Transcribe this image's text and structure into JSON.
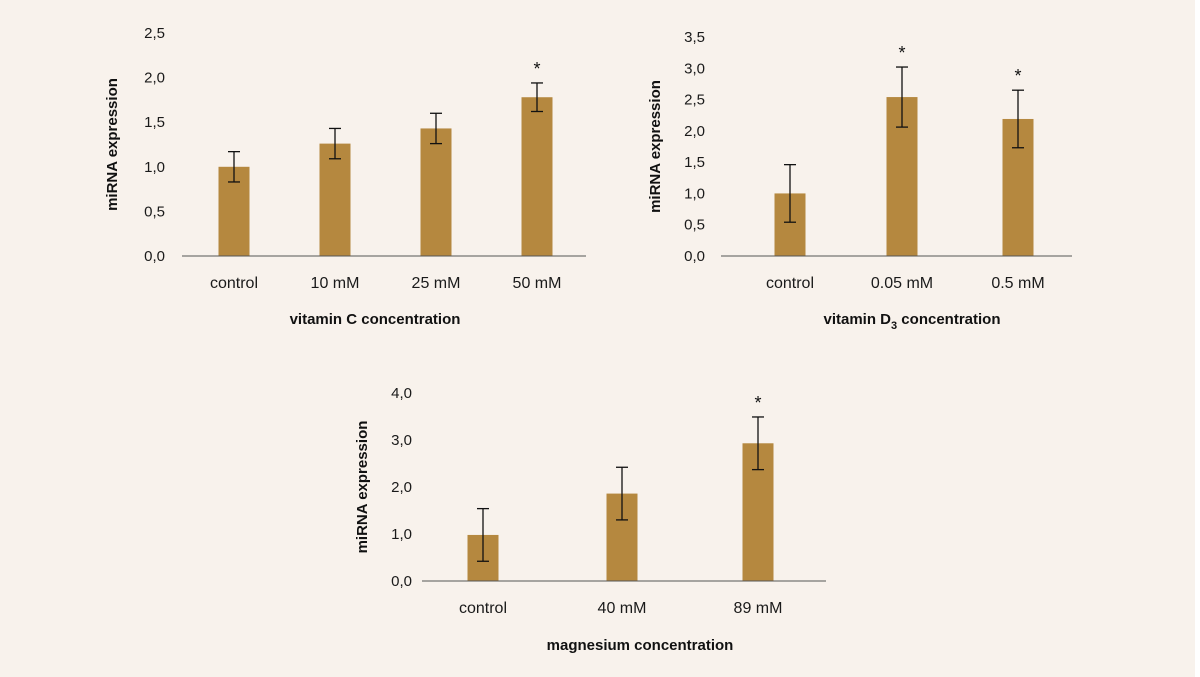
{
  "colors": {
    "background": "#f8f2ec",
    "bar": "#b5883f",
    "axis": "#555555",
    "text": "#1a1a1a"
  },
  "chart_data": [
    {
      "type": "bar",
      "categories": [
        "control",
        "10 mM",
        "25 mM",
        "50 mM"
      ],
      "values": [
        1.0,
        1.26,
        1.43,
        1.78
      ],
      "error": [
        0.17,
        0.17,
        0.17,
        0.16
      ],
      "significance": [
        "",
        "",
        "",
        "*"
      ],
      "ylabel": "miRNA expression",
      "xlabel": "vitamin C concentration",
      "ylim": [
        0,
        2.5
      ],
      "yticks": [
        "0,0",
        "0,5",
        "1,0",
        "1,5",
        "2,0",
        "2,5"
      ],
      "grid": false,
      "legend": "none"
    },
    {
      "type": "bar",
      "categories": [
        "control",
        "0.05 mM",
        "0.5 mM"
      ],
      "values": [
        1.0,
        2.54,
        2.19
      ],
      "error": [
        0.46,
        0.48,
        0.46
      ],
      "significance": [
        "",
        "*",
        "*"
      ],
      "ylabel": "miRNA expression",
      "xlabel_parts": [
        "vitamin D",
        "3",
        " concentration"
      ],
      "ylim": [
        0,
        3.5
      ],
      "yticks": [
        "0,0",
        "0,5",
        "1,0",
        "1,5",
        "2,0",
        "2,5",
        "3,0",
        "3,5"
      ],
      "grid": false,
      "legend": "none"
    },
    {
      "type": "bar",
      "categories": [
        "control",
        "40 mM",
        "89 mM"
      ],
      "values": [
        0.98,
        1.86,
        2.93
      ],
      "error": [
        0.56,
        0.56,
        0.56
      ],
      "significance": [
        "",
        "",
        "*"
      ],
      "ylabel": "miRNA expression",
      "xlabel": "magnesium concentration",
      "ylim": [
        0,
        4.0
      ],
      "yticks": [
        "0,0",
        "1,0",
        "2,0",
        "3,0",
        "4,0"
      ],
      "grid": false,
      "legend": "none"
    }
  ]
}
